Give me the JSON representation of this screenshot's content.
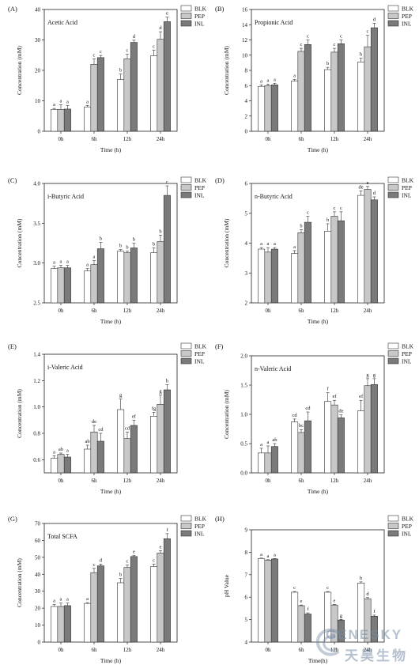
{
  "panel_positions": [
    "left",
    "right"
  ],
  "legend_placement": "top-right",
  "grid": false,
  "colors": {
    "BLK": "#ffffff",
    "PEP": "#c8c8c8",
    "INL": "#7a7a7a"
  },
  "watermark": {
    "text": "GENESKY",
    "text_cn": "天昊生物",
    "icon": "genesky-logo-icon"
  },
  "chart_data": [
    {
      "type": "bar",
      "panel": "(A)",
      "title": "Acetic Acid",
      "xlabel": "Time (h)",
      "ylabel": "Concentration (mM)",
      "categories": [
        "0h",
        "6h",
        "12h",
        "24h"
      ],
      "ylim": [
        0,
        40
      ],
      "yticks": [
        0,
        10,
        20,
        30,
        40
      ],
      "tick_decimals": 0,
      "series": [
        {
          "name": "BLK",
          "values": [
            7.2,
            8.0,
            17.0,
            24.8
          ],
          "errors": [
            0.3,
            0.5,
            1.8,
            1.8
          ],
          "letters": [
            "a",
            "a",
            "b",
            "c"
          ]
        },
        {
          "name": "PEP",
          "values": [
            7.2,
            22.0,
            23.8,
            30.2
          ],
          "errors": [
            1.5,
            1.8,
            1.5,
            2.5
          ],
          "letters": [
            "a",
            "c",
            "c",
            "d"
          ]
        },
        {
          "name": "INL",
          "values": [
            7.3,
            24.2,
            29.2,
            36.0
          ],
          "errors": [
            1.2,
            0.7,
            0.7,
            1.5
          ],
          "letters": [
            "a",
            "c",
            "d",
            "e"
          ]
        }
      ]
    },
    {
      "type": "bar",
      "panel": "(B)",
      "title": "Propionic Acid",
      "xlabel": "Time (h)",
      "ylabel": "Concentration (mM)",
      "categories": [
        "0h",
        "6h",
        "12h",
        "24h"
      ],
      "ylim": [
        0,
        16
      ],
      "yticks": [
        0,
        2,
        4,
        6,
        8,
        10,
        12,
        14,
        16
      ],
      "tick_decimals": 0,
      "series": [
        {
          "name": "BLK",
          "values": [
            5.9,
            6.6,
            8.1,
            9.1
          ],
          "errors": [
            0.2,
            0.2,
            0.3,
            0.5
          ],
          "letters": [
            "a",
            "a",
            "b",
            "b"
          ]
        },
        {
          "name": "PEP",
          "values": [
            6.0,
            10.5,
            10.4,
            11.1
          ],
          "errors": [
            0.2,
            0.4,
            0.5,
            1.5
          ],
          "letters": [
            "a",
            "c",
            "c",
            "c"
          ]
        },
        {
          "name": "INL",
          "values": [
            6.1,
            11.4,
            11.5,
            13.6
          ],
          "errors": [
            0.2,
            0.6,
            0.5,
            0.6
          ],
          "letters": [
            "a",
            "c",
            "c",
            "d"
          ]
        }
      ]
    },
    {
      "type": "bar",
      "panel": "(C)",
      "title": "i-Butyric Acid",
      "xlabel": "Time (h)",
      "ylabel": "Concentration (mM)",
      "categories": [
        "0h",
        "6h",
        "12h",
        "24h"
      ],
      "ylim": [
        2.5,
        4.0
      ],
      "yticks": [
        2.5,
        3.0,
        3.5,
        4.0
      ],
      "tick_decimals": 1,
      "series": [
        {
          "name": "BLK",
          "values": [
            2.93,
            2.9,
            3.15,
            3.13
          ],
          "errors": [
            0.03,
            0.03,
            0.02,
            0.06
          ],
          "letters": [
            "a",
            "a",
            "b",
            "b"
          ]
        },
        {
          "name": "PEP",
          "values": [
            2.94,
            2.98,
            3.13,
            3.27
          ],
          "errors": [
            0.03,
            0.05,
            0.02,
            0.08
          ],
          "letters": [
            "a",
            "a",
            "b",
            "b"
          ]
        },
        {
          "name": "INL",
          "values": [
            2.94,
            3.18,
            3.19,
            3.85
          ],
          "errors": [
            0.03,
            0.08,
            0.06,
            0.12
          ],
          "letters": [
            "a",
            "b",
            "b",
            "c"
          ]
        }
      ]
    },
    {
      "type": "bar",
      "panel": "(D)",
      "title": "n-Butyric Acid",
      "xlabel": "Time (h)",
      "ylabel": "Concentration (mM)",
      "categories": [
        "0h",
        "6h",
        "12h",
        "24h"
      ],
      "ylim": [
        2,
        6
      ],
      "yticks": [
        2,
        3,
        4,
        5,
        6
      ],
      "tick_decimals": 0,
      "series": [
        {
          "name": "BLK",
          "values": [
            3.8,
            3.65,
            4.4,
            5.6
          ],
          "errors": [
            0.05,
            0.1,
            0.25,
            0.15
          ],
          "letters": [
            "a",
            "a",
            "b",
            "de"
          ]
        },
        {
          "name": "PEP",
          "values": [
            3.7,
            4.35,
            4.9,
            5.8
          ],
          "errors": [
            0.15,
            0.1,
            0.15,
            0.1
          ],
          "letters": [
            "a",
            "b",
            "c",
            "e"
          ]
        },
        {
          "name": "INL",
          "values": [
            3.8,
            4.7,
            4.75,
            5.45
          ],
          "errors": [
            0.05,
            0.2,
            0.3,
            0.1
          ],
          "letters": [
            "a",
            "c",
            "c",
            "d"
          ]
        }
      ]
    },
    {
      "type": "bar",
      "panel": "(E)",
      "title": "i-Valeric Acid",
      "xlabel": "Time (h)",
      "ylabel": "Concentration (mM)",
      "categories": [
        "0h",
        "6h",
        "12h",
        "24h"
      ],
      "ylim": [
        0.5,
        1.4
      ],
      "yticks": [
        0.6,
        0.8,
        1.0,
        1.2,
        1.4
      ],
      "tick_decimals": 1,
      "series": [
        {
          "name": "BLK",
          "values": [
            0.61,
            0.68,
            0.98,
            0.93
          ],
          "errors": [
            0.02,
            0.03,
            0.08,
            0.03
          ],
          "letters": [
            "a",
            "ab",
            "g",
            "fg"
          ]
        },
        {
          "name": "PEP",
          "values": [
            0.64,
            0.81,
            0.76,
            1.02
          ],
          "errors": [
            0.01,
            0.05,
            0.05,
            0.07
          ],
          "letters": [
            "ab",
            "de",
            "cd",
            "g"
          ]
        },
        {
          "name": "INL",
          "values": [
            0.62,
            0.74,
            0.86,
            1.13
          ],
          "errors": [
            0.02,
            0.06,
            0.04,
            0.04
          ],
          "letters": [
            "a",
            "cd",
            "ef",
            "h"
          ]
        }
      ]
    },
    {
      "type": "bar",
      "panel": "(F)",
      "title": "n-Valeric Acid",
      "xlabel": "Time (h)",
      "ylabel": "Concentration (mM)",
      "categories": [
        "0h",
        "6h",
        "12h",
        "24h"
      ],
      "ylim": [
        0,
        2.0
      ],
      "yticks": [
        0.0,
        0.5,
        1.0,
        1.5,
        2.0
      ],
      "tick_decimals": 1,
      "series": [
        {
          "name": "BLK",
          "values": [
            0.34,
            0.87,
            1.22,
            1.06
          ],
          "errors": [
            0.08,
            0.05,
            0.15,
            0.18
          ],
          "letters": [
            "a",
            "cd",
            "f",
            "ef"
          ]
        },
        {
          "name": "PEP",
          "values": [
            0.34,
            0.69,
            1.16,
            1.49
          ],
          "errors": [
            0.12,
            0.05,
            0.08,
            0.12
          ],
          "letters": [
            "a",
            "bc",
            "ef",
            "g"
          ]
        },
        {
          "name": "INL",
          "values": [
            0.45,
            0.89,
            0.94,
            1.51
          ],
          "errors": [
            0.05,
            0.15,
            0.05,
            0.1
          ],
          "letters": [
            "ab",
            "cd",
            "de",
            "g"
          ]
        }
      ]
    },
    {
      "type": "bar",
      "panel": "(G)",
      "title": "Total SCFA",
      "xlabel": "Time (h)",
      "ylabel": "Concentration (mM)",
      "categories": [
        "0h",
        "6h",
        "12h",
        "24h"
      ],
      "ylim": [
        0,
        70
      ],
      "yticks": [
        0,
        10,
        20,
        30,
        40,
        50,
        60,
        70
      ],
      "tick_decimals": 0,
      "series": [
        {
          "name": "BLK",
          "values": [
            21.0,
            22.8,
            35.0,
            44.5
          ],
          "errors": [
            1.2,
            0.5,
            2.5,
            1.5
          ],
          "letters": [
            "a",
            "a",
            "b",
            "c"
          ]
        },
        {
          "name": "PEP",
          "values": [
            21.0,
            41.0,
            44.0,
            52.5
          ],
          "errors": [
            2.0,
            2.5,
            1.5,
            1.5
          ],
          "letters": [
            "a",
            "c",
            "c",
            "e"
          ]
        },
        {
          "name": "INL",
          "values": [
            21.5,
            45.0,
            50.5,
            61.0
          ],
          "errors": [
            1.5,
            1.0,
            0.5,
            3.0
          ],
          "letters": [
            "a",
            "d",
            "e",
            "f"
          ]
        }
      ]
    },
    {
      "type": "bar",
      "panel": "(H)",
      "title": "",
      "xlabel": "Time(h)",
      "ylabel": "pH Value",
      "categories": [
        "0h",
        "6h",
        "12h",
        "24h"
      ],
      "ylim": [
        4,
        9
      ],
      "yticks": [
        4,
        5,
        6,
        7,
        8,
        9
      ],
      "tick_decimals": 0,
      "series": [
        {
          "name": "BLK",
          "values": [
            7.72,
            6.22,
            6.22,
            6.63
          ],
          "errors": [
            0.02,
            0.03,
            0.03,
            0.05
          ],
          "letters": [
            "a",
            "c",
            "c",
            "b"
          ]
        },
        {
          "name": "PEP",
          "values": [
            7.65,
            5.62,
            5.65,
            5.93
          ],
          "errors": [
            0.02,
            0.03,
            0.03,
            0.05
          ],
          "letters": [
            "a",
            "e",
            "e",
            "d"
          ]
        },
        {
          "name": "INL",
          "values": [
            7.7,
            5.25,
            4.98,
            5.15
          ],
          "errors": [
            0.02,
            0.05,
            0.03,
            0.05
          ],
          "letters": [
            "a",
            "f",
            "g",
            "f"
          ]
        }
      ]
    }
  ]
}
